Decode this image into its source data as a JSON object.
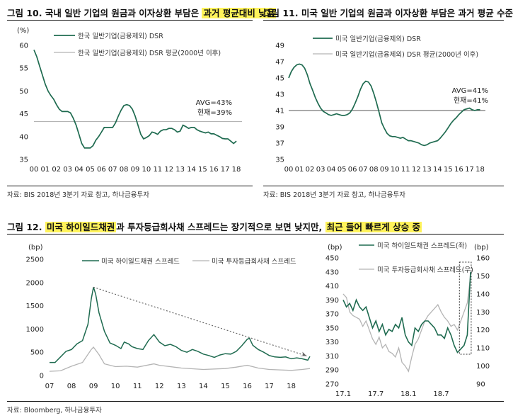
{
  "figures": {
    "fig10": {
      "prefix": "그림 10. 국내 일반 기업의 원금과 이자상환 부담은 ",
      "highlight": "과거 평균대비 낮음"
    },
    "fig11": {
      "text": "그림 11. 미국 일반 기업의 원금과 이자상환 부담은 과거 평균 수준"
    },
    "fig12": {
      "prefix": "그림 12. ",
      "hl1": "미국 하이일드채권",
      "mid": "과 투자등급회사채 스프레드는 장기적으로 보면 낮지만, ",
      "hl2": "최근 들어 빠르게 상승 중"
    }
  },
  "sources": {
    "top_left": "자료: BIS 2018년 3분기 자료 참고, 하나금융투자",
    "top_right": "자료: BIS 2018년 3분기 자료 참고, 하나금융투자",
    "bottom": "자료: Bloomberg, 하나금융투자"
  },
  "colors": {
    "primary": "#1f6b50",
    "secondary": "#b4b4b4",
    "highlight": "#fff35a",
    "guide": "#555555"
  },
  "chart_data": [
    {
      "id": "korea_dsr",
      "type": "line",
      "unit": "(%)",
      "ylim": [
        35,
        60
      ],
      "yticks": [
        35,
        40,
        45,
        50,
        55,
        60
      ],
      "xlim": [
        2000,
        2018.5
      ],
      "xticks": [
        "00",
        "01",
        "02",
        "03",
        "04",
        "05",
        "06",
        "07",
        "08",
        "09",
        "10",
        "11",
        "12",
        "13",
        "14",
        "15",
        "16",
        "17",
        "18"
      ],
      "series": [
        {
          "name": "한국 일반기업(금융제외) DSR",
          "x": [
            2000,
            2000.25,
            2000.5,
            2000.75,
            2001,
            2001.25,
            2001.5,
            2001.75,
            2002,
            2002.25,
            2002.5,
            2002.75,
            2003,
            2003.25,
            2003.5,
            2003.75,
            2004,
            2004.25,
            2004.5,
            2004.75,
            2005,
            2005.25,
            2005.5,
            2005.75,
            2006,
            2006.25,
            2006.5,
            2006.75,
            2007,
            2007.25,
            2007.5,
            2007.75,
            2008,
            2008.25,
            2008.5,
            2008.75,
            2009,
            2009.25,
            2009.5,
            2009.75,
            2010,
            2010.25,
            2010.5,
            2010.75,
            2011,
            2011.25,
            2011.5,
            2011.75,
            2012,
            2012.25,
            2012.5,
            2012.75,
            2013,
            2013.25,
            2013.5,
            2013.75,
            2014,
            2014.25,
            2014.5,
            2014.75,
            2015,
            2015.25,
            2015.5,
            2015.75,
            2016,
            2016.25,
            2016.5,
            2016.75,
            2017,
            2017.25,
            2017.5,
            2017.75,
            2018
          ],
          "y": [
            59,
            57.5,
            55.5,
            53.5,
            51.5,
            50,
            49,
            48.2,
            47,
            46,
            45.5,
            45.5,
            45.5,
            45.2,
            44,
            42.5,
            40.5,
            38.5,
            37.5,
            37.5,
            37.5,
            38,
            39.2,
            40,
            41,
            42,
            42,
            42,
            42,
            43,
            44.5,
            45.8,
            46.8,
            47,
            46.8,
            46,
            44.5,
            42.5,
            40.5,
            39.5,
            39.8,
            40.2,
            41,
            40.8,
            40.5,
            41.2,
            41.5,
            41.5,
            41.8,
            41.8,
            41.5,
            41,
            41.2,
            42.5,
            42.2,
            41.8,
            42,
            42,
            41.5,
            41.2,
            41,
            40.8,
            41,
            40.6,
            40.6,
            40.3,
            40,
            39.6,
            39.5,
            39.5,
            39,
            38.5,
            39
          ]
        },
        {
          "name": "한국 일반기업(금융제외) DSR 평균(2000년 이후)",
          "value": 43.3
        }
      ],
      "annotations": [
        "AVG=43%",
        "현재=39%"
      ],
      "legend": "top-right"
    },
    {
      "id": "us_dsr",
      "type": "line",
      "ylim": [
        35,
        49
      ],
      "yticks": [
        35,
        37,
        39,
        41,
        43,
        45,
        47,
        49
      ],
      "xlim": [
        2000,
        2018.5
      ],
      "xticks": [
        "00",
        "01",
        "02",
        "03",
        "04",
        "05",
        "06",
        "07",
        "08",
        "09",
        "10",
        "11",
        "12",
        "13",
        "14",
        "15",
        "16",
        "17",
        "18"
      ],
      "series": [
        {
          "name": "미국 일반기업(금융제외) DSR",
          "x": [
            2000,
            2000.25,
            2000.5,
            2000.75,
            2001,
            2001.25,
            2001.5,
            2001.75,
            2002,
            2002.25,
            2002.5,
            2002.75,
            2003,
            2003.25,
            2003.5,
            2003.75,
            2004,
            2004.25,
            2004.5,
            2004.75,
            2005,
            2005.25,
            2005.5,
            2005.75,
            2006,
            2006.25,
            2006.5,
            2006.75,
            2007,
            2007.25,
            2007.5,
            2007.75,
            2008,
            2008.25,
            2008.5,
            2008.75,
            2009,
            2009.25,
            2009.5,
            2009.75,
            2010,
            2010.25,
            2010.5,
            2010.75,
            2011,
            2011.25,
            2011.5,
            2011.75,
            2012,
            2012.25,
            2012.5,
            2012.75,
            2013,
            2013.25,
            2013.5,
            2013.75,
            2014,
            2014.25,
            2014.5,
            2014.75,
            2015,
            2015.25,
            2015.5,
            2015.75,
            2016,
            2016.25,
            2016.5,
            2016.75,
            2017,
            2017.25,
            2017.5,
            2017.75,
            2018
          ],
          "y": [
            45,
            45.8,
            46.3,
            46.6,
            46.7,
            46.6,
            46.2,
            45.4,
            44.3,
            43.5,
            42.6,
            41.9,
            41.3,
            40.9,
            40.7,
            40.5,
            40.4,
            40.5,
            40.6,
            40.5,
            40.4,
            40.4,
            40.5,
            40.7,
            41.2,
            41.9,
            42.7,
            43.6,
            44.3,
            44.6,
            44.5,
            44.0,
            43.1,
            42.0,
            40.8,
            39.5,
            38.8,
            38.2,
            37.9,
            37.8,
            37.8,
            37.7,
            37.6,
            37.7,
            37.5,
            37.3,
            37.3,
            37.2,
            37.1,
            37.0,
            36.8,
            36.7,
            36.8,
            37.0,
            37.1,
            37.2,
            37.3,
            37.6,
            38.0,
            38.4,
            38.9,
            39.4,
            39.8,
            40.1,
            40.5,
            40.8,
            41.1,
            41.2,
            41.3,
            41.1,
            41.0,
            41.1,
            41.1
          ]
        },
        {
          "name": "미국 일반기업(금융제외) DSR 평균(2000년 이후)",
          "value": 41
        }
      ],
      "annotations": [
        "AVG=41%",
        "현재=41%"
      ],
      "legend": "top-right"
    },
    {
      "id": "us_spreads_long",
      "type": "line",
      "unit": "(bp)",
      "ylim": [
        0,
        2500
      ],
      "yticks": [
        0,
        500,
        1000,
        1500,
        2000,
        2500
      ],
      "xlim": [
        2007,
        2018.85
      ],
      "xticks": [
        "07",
        "08",
        "09",
        "10",
        "11",
        "12",
        "13",
        "14",
        "15",
        "16",
        "17",
        "18"
      ],
      "series": [
        {
          "name": "미국 하이일드채권 스프레드",
          "x": [
            2007,
            2007.25,
            2007.5,
            2007.75,
            2008,
            2008.25,
            2008.5,
            2008.75,
            2008.9,
            2009,
            2009.1,
            2009.25,
            2009.5,
            2009.75,
            2010,
            2010.25,
            2010.4,
            2010.6,
            2010.75,
            2011,
            2011.25,
            2011.5,
            2011.75,
            2012,
            2012.25,
            2012.5,
            2012.75,
            2013,
            2013.25,
            2013.5,
            2013.75,
            2014,
            2014.25,
            2014.5,
            2014.75,
            2015,
            2015.25,
            2015.5,
            2015.75,
            2016,
            2016.1,
            2016.25,
            2016.5,
            2016.75,
            2017,
            2017.25,
            2017.5,
            2017.75,
            2018,
            2018.25,
            2018.5,
            2018.75,
            2018.85
          ],
          "y": [
            280,
            280,
            400,
            520,
            560,
            680,
            750,
            1100,
            1650,
            1900,
            1750,
            1350,
            950,
            700,
            650,
            580,
            720,
            680,
            620,
            580,
            560,
            750,
            880,
            720,
            640,
            670,
            620,
            540,
            500,
            560,
            520,
            460,
            430,
            390,
            440,
            470,
            460,
            520,
            640,
            780,
            800,
            650,
            560,
            500,
            430,
            400,
            390,
            400,
            360,
            380,
            360,
            330,
            410
          ]
        },
        {
          "name": "미국 투자등급회사채 스프레드",
          "x": [
            2007,
            2007.5,
            2008,
            2008.5,
            2008.9,
            2009,
            2009.25,
            2009.5,
            2010,
            2010.5,
            2011,
            2011.75,
            2012,
            2013,
            2014,
            2015,
            2015.5,
            2016,
            2016.5,
            2017,
            2018,
            2018.5,
            2018.85
          ],
          "y": [
            90,
            100,
            200,
            280,
            560,
            610,
            450,
            250,
            190,
            200,
            180,
            250,
            220,
            160,
            130,
            150,
            180,
            220,
            160,
            130,
            110,
            130,
            150
          ]
        },
        {
          "name": "trend",
          "x": [
            2009,
            2018.7
          ],
          "y": [
            1900,
            420
          ]
        }
      ],
      "legend": "top"
    },
    {
      "id": "us_spreads_recent",
      "type": "line",
      "unit_left": "(bp)",
      "unit_right": "(bp)",
      "ylim_left": [
        270,
        450
      ],
      "yticks_left": [
        270,
        290,
        310,
        330,
        350,
        370,
        390,
        410,
        430,
        450
      ],
      "ylim_right": [
        90,
        160
      ],
      "yticks_right": [
        90,
        100,
        110,
        120,
        130,
        140,
        150,
        160
      ],
      "xlim": [
        2017,
        2018.95
      ],
      "xticks": [
        "17.1",
        "17.7",
        "18.1",
        "18.7"
      ],
      "series": [
        {
          "name": "미국 하이일드채권 스프레드(좌)",
          "axis": "left",
          "x": [
            2017,
            2017.05,
            2017.1,
            2017.15,
            2017.2,
            2017.25,
            2017.3,
            2017.35,
            2017.4,
            2017.45,
            2017.5,
            2017.55,
            2017.6,
            2017.65,
            2017.7,
            2017.75,
            2017.8,
            2017.85,
            2017.9,
            2017.95,
            2018,
            2018.05,
            2018.1,
            2018.15,
            2018.2,
            2018.25,
            2018.3,
            2018.35,
            2018.4,
            2018.45,
            2018.5,
            2018.55,
            2018.6,
            2018.65,
            2018.7,
            2018.75,
            2018.8,
            2018.85,
            2018.9,
            2018.95
          ],
          "y": [
            390,
            380,
            385,
            375,
            390,
            380,
            375,
            380,
            365,
            350,
            360,
            345,
            355,
            340,
            348,
            345,
            355,
            350,
            365,
            340,
            330,
            325,
            350,
            345,
            355,
            360,
            360,
            355,
            350,
            340,
            340,
            335,
            350,
            340,
            325,
            315,
            320,
            325,
            340,
            430
          ]
        },
        {
          "name": "미국 투자등급회사채 스프레드(우)",
          "axis": "right",
          "x": [
            2017,
            2017.05,
            2017.1,
            2017.15,
            2017.2,
            2017.25,
            2017.3,
            2017.35,
            2017.4,
            2017.45,
            2017.5,
            2017.55,
            2017.6,
            2017.65,
            2017.7,
            2017.75,
            2017.8,
            2017.85,
            2017.9,
            2017.95,
            2018,
            2018.05,
            2018.1,
            2018.15,
            2018.2,
            2018.25,
            2018.3,
            2018.35,
            2018.4,
            2018.45,
            2018.5,
            2018.55,
            2018.6,
            2018.65,
            2018.7,
            2018.75,
            2018.8,
            2018.85,
            2018.9,
            2018.95
          ],
          "y": [
            140,
            138,
            130,
            128,
            127,
            126,
            122,
            125,
            120,
            115,
            112,
            116,
            110,
            112,
            108,
            107,
            105,
            110,
            102,
            100,
            97,
            105,
            112,
            115,
            120,
            125,
            128,
            130,
            132,
            134,
            130,
            127,
            125,
            122,
            123,
            120,
            125,
            130,
            135,
            150
          ]
        }
      ],
      "legend": "top-left"
    }
  ]
}
